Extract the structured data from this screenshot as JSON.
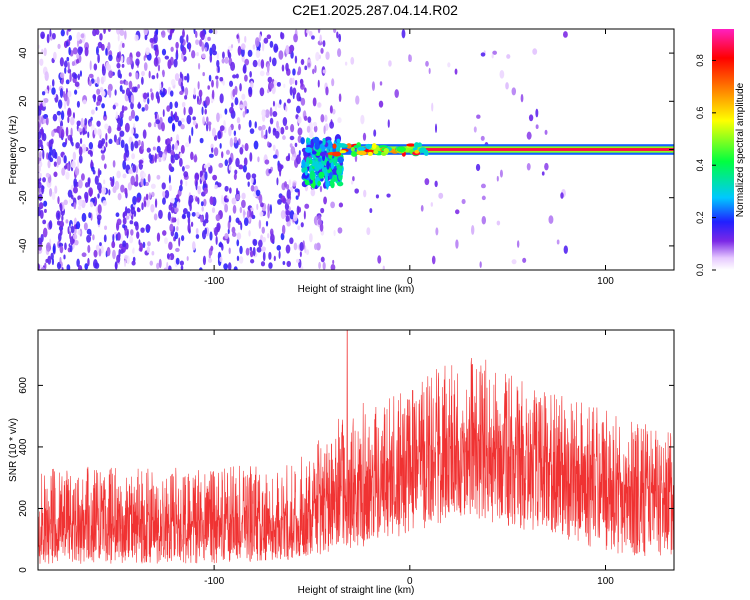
{
  "title": "C2E1.2025.287.04.14.R02",
  "chart_data": [
    {
      "type": "heatmap",
      "title": "C2E1.2025.287.04.14.R02",
      "xlabel": "Height of straight line (km)",
      "ylabel": "Frequency (Hz)",
      "xlim": [
        -190,
        135
      ],
      "ylim": [
        -50,
        50
      ],
      "xticks": [
        -100,
        0,
        100
      ],
      "yticks": [
        -40,
        -20,
        0,
        20,
        40
      ],
      "colorbar": {
        "label": "Normalized spectral amplitude",
        "range": [
          0,
          0.92
        ],
        "ticks": [
          0.0,
          0.2,
          0.4,
          0.6,
          0.8
        ],
        "colormap": [
          "#ffffff",
          "#e6c8ff",
          "#7b28e6",
          "#2020ff",
          "#00c8ff",
          "#00ff40",
          "#ffff00",
          "#ff8000",
          "#ff0000",
          "#ff20c0"
        ]
      },
      "features": [
        {
          "name": "broadband noise",
          "x_range": [
            -190,
            -55
          ],
          "freq_range": [
            -50,
            50
          ],
          "amplitude": 0.08
        },
        {
          "name": "turbulent patch",
          "x_range": [
            -55,
            -35
          ],
          "freq_range": [
            -15,
            5
          ],
          "amplitude": 0.25
        },
        {
          "name": "narrow zero-frequency line",
          "x_range": [
            -45,
            135
          ],
          "freq_range": [
            -1.5,
            1.5
          ],
          "amplitude": 0.85
        }
      ]
    },
    {
      "type": "line",
      "xlabel": "Height of straight line (km)",
      "ylabel": "SNR (10 * v/v)",
      "xlim": [
        -190,
        135
      ],
      "ylim": [
        0,
        780
      ],
      "xticks": [
        -100,
        0,
        100
      ],
      "yticks": [
        0,
        200,
        400,
        600
      ],
      "color": "#f03232",
      "envelope": {
        "x": [
          -190,
          -150,
          -100,
          -60,
          -40,
          -20,
          0,
          20,
          30,
          50,
          80,
          100,
          120,
          135
        ],
        "mean": [
          140,
          145,
          150,
          160,
          220,
          260,
          330,
          390,
          420,
          380,
          320,
          280,
          260,
          250
        ],
        "max": [
          330,
          340,
          330,
          360,
          480,
          560,
          600,
          690,
          720,
          640,
          560,
          520,
          480,
          450
        ],
        "min": [
          20,
          20,
          20,
          30,
          60,
          80,
          120,
          160,
          170,
          140,
          100,
          60,
          40,
          30
        ]
      },
      "spike": {
        "x": -32,
        "y": 780
      }
    }
  ]
}
